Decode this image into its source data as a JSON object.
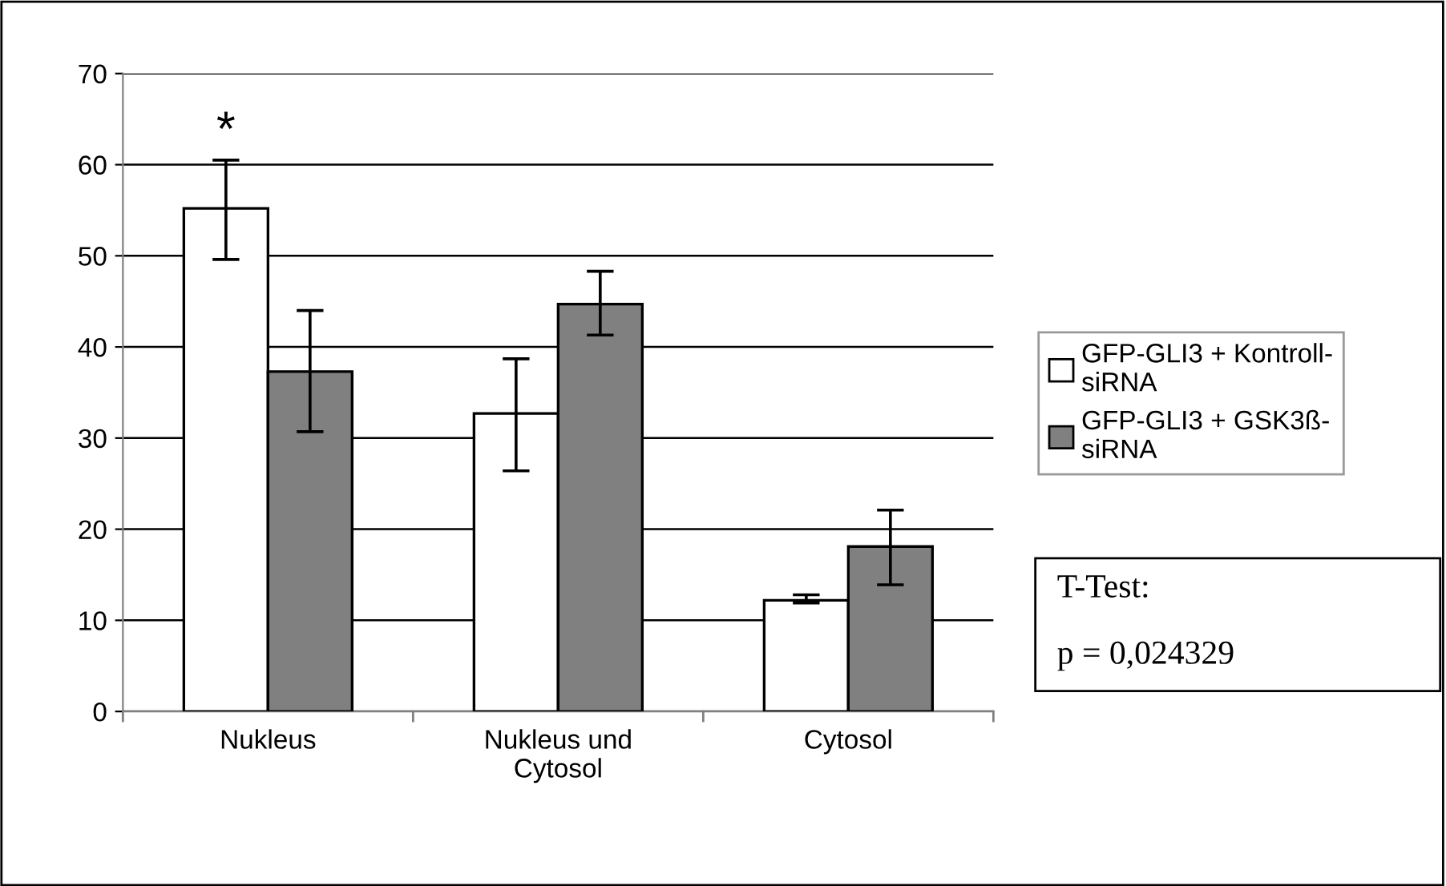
{
  "chart_data": {
    "type": "bar",
    "categories": [
      "Nukleus",
      "Nukleus und Cytosol",
      "Cytosol"
    ],
    "series": [
      {
        "name": "GFP-GLI3 + Kontroll-siRNA",
        "color": "#ffffff",
        "values": [
          55.2,
          32.7,
          12.2
        ],
        "errors": [
          [
            49.6,
            60.5
          ],
          [
            26.4,
            38.7
          ],
          [
            11.9,
            12.8
          ]
        ]
      },
      {
        "name": "GFP-GLI3 + GSK3ß-siRNA",
        "color": "#808080",
        "values": [
          37.3,
          44.7,
          18.1
        ],
        "errors": [
          [
            30.7,
            44.0
          ],
          [
            41.3,
            48.3
          ],
          [
            13.9,
            22.1
          ]
        ]
      }
    ],
    "ylim": [
      0,
      70
    ],
    "yticks": [
      0,
      10,
      20,
      30,
      40,
      50,
      60,
      70
    ],
    "grid": "y",
    "legend": "right",
    "annotations": [
      "*",
      "T-Test:",
      "p = 0,024329"
    ]
  }
}
